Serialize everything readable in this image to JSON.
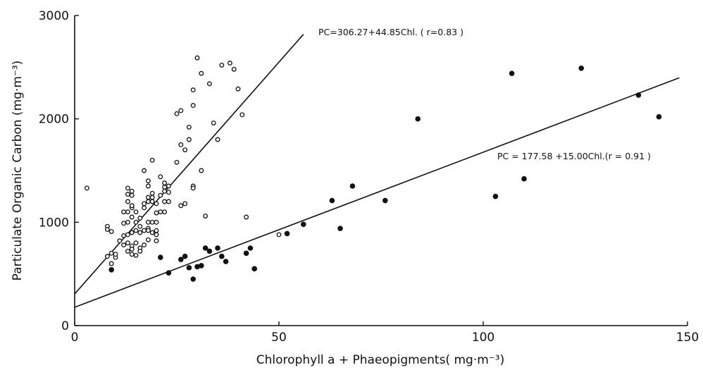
{
  "chart_data": {
    "type": "scatter",
    "title": "",
    "xlabel": "Chlorophyll a + Phaeopigments( mg·m⁻³)",
    "ylabel": "Particulate Organic Carbon (mg·m⁻³)",
    "xlim": [
      0,
      150
    ],
    "ylim": [
      0,
      3000
    ],
    "x_ticks": [
      "0",
      "50",
      "100",
      "150"
    ],
    "y_ticks": [
      "0",
      "1000",
      "2000",
      "3000"
    ],
    "grid": false,
    "series": [
      {
        "marker": "open-circle",
        "x": [
          3,
          8,
          8,
          8,
          9,
          9,
          9,
          10,
          10,
          11,
          12,
          12,
          12,
          12,
          13,
          13,
          13,
          13,
          13,
          13,
          13,
          13,
          14,
          14,
          14,
          14,
          14,
          14,
          14,
          14,
          14,
          15,
          15,
          15,
          15,
          15,
          16,
          16,
          16,
          16,
          16,
          17,
          17,
          17,
          17,
          17,
          18,
          18,
          18,
          18,
          18,
          18,
          18,
          18,
          19,
          19,
          19,
          19,
          19,
          19,
          20,
          20,
          20,
          20,
          20,
          20,
          21,
          21,
          21,
          22,
          22,
          22,
          22,
          22,
          23,
          23,
          23,
          25,
          25,
          26,
          26,
          26,
          27,
          27,
          28,
          28,
          29,
          29,
          29,
          29,
          30,
          31,
          31,
          32,
          33,
          34,
          35,
          36,
          38,
          39,
          40,
          41,
          42,
          50
        ],
        "y": [
          1330,
          670,
          960,
          930,
          600,
          910,
          700,
          660,
          690,
          820,
          870,
          780,
          990,
          1100,
          1100,
          880,
          800,
          720,
          1000,
          1200,
          1270,
          1330,
          690,
          770,
          900,
          1050,
          1140,
          1160,
          1260,
          1300,
          740,
          800,
          920,
          1000,
          1100,
          680,
          900,
          960,
          750,
          720,
          1040,
          1500,
          1140,
          1180,
          920,
          780,
          1350,
          1400,
          1240,
          1200,
          1000,
          940,
          920,
          830,
          1600,
          1280,
          1240,
          1200,
          1000,
          900,
          920,
          1180,
          1090,
          1000,
          880,
          820,
          1440,
          1260,
          1100,
          1200,
          1100,
          1300,
          1340,
          1380,
          1290,
          1350,
          1200,
          1580,
          2050,
          1160,
          2080,
          1750,
          1700,
          1180,
          1920,
          1800,
          2280,
          2130,
          1350,
          1330,
          2590,
          1500,
          2440,
          1060,
          2340,
          1960,
          1800,
          2520,
          2540,
          2480,
          2290,
          2040,
          1050,
          880
        ],
        "fit": {
          "slope": 44.85,
          "intercept": 306.27,
          "x_end": 56
        },
        "equation": "PC=306.27+44.85Chl.  ( r=0.83 )"
      },
      {
        "marker": "filled-circle",
        "x": [
          9,
          21,
          23,
          26,
          27,
          28,
          29,
          30,
          31,
          32,
          33,
          35,
          36,
          37,
          42,
          43,
          44,
          52,
          56,
          63,
          65,
          68,
          76,
          84,
          103,
          107,
          110,
          124,
          138,
          143
        ],
        "y": [
          540,
          660,
          510,
          640,
          670,
          560,
          450,
          570,
          580,
          750,
          720,
          750,
          670,
          620,
          700,
          750,
          550,
          890,
          980,
          1210,
          940,
          1350,
          1210,
          2000,
          1250,
          2440,
          1420,
          2490,
          2230,
          2020
        ],
        "fit": {
          "slope": 15.0,
          "intercept": 177.58,
          "x_end": 148
        },
        "equation": "PC = 177.58 +15.00Chl.(r = 0.91 )"
      }
    ]
  }
}
